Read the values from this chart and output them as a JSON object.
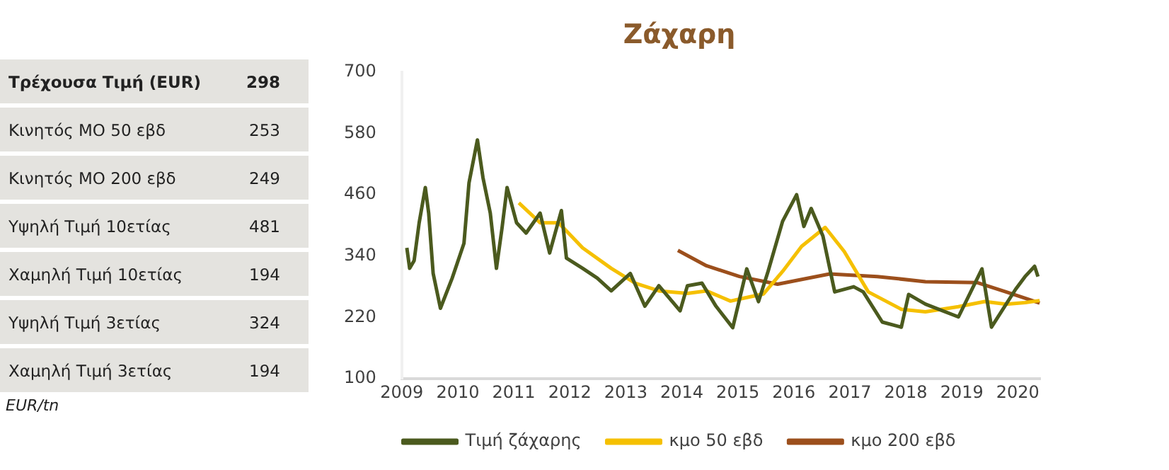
{
  "chart_data": [
    {
      "type": "other",
      "categories": [
        "Τρέχουσα Τιμή (EUR)",
        "Κινητός ΜΟ 50 εβδ",
        "Κινητός ΜΟ 200 εβδ",
        "Υψηλή Τιμή 10ετίας",
        "Χαμηλή Τιμή 10ετίας",
        "Υψηλή Τιμή 3ετίας",
        "Χαμηλή Τιμή 3ετίας"
      ],
      "values": [
        298,
        253,
        249,
        481,
        194,
        324,
        194
      ],
      "data_labels": true,
      "annotations": [
        "EUR/tn"
      ]
    },
    {
      "type": "line",
      "title": "Ζάχαρη",
      "xlim": [
        2009,
        2020.4
      ],
      "xticks": [
        2009,
        2010,
        2011,
        2012,
        2013,
        2014,
        2015,
        2016,
        2017,
        2018,
        2019,
        2020
      ],
      "ylim": [
        100,
        700
      ],
      "yticks": [
        100,
        220,
        340,
        460,
        580,
        700
      ],
      "grid": false,
      "legend": "bottom",
      "marker": "none",
      "line_style": "solid",
      "series": [
        {
          "name": "Τιμή ζάχαρης",
          "color": "#4b5a1e",
          "x": [
            2009.09,
            2009.14,
            2009.22,
            2009.31,
            2009.42,
            2009.48,
            2009.56,
            2009.69,
            2009.9,
            2010.11,
            2010.2,
            2010.35,
            2010.45,
            2010.58,
            2010.69,
            2010.79,
            2010.88,
            2011.05,
            2011.22,
            2011.47,
            2011.64,
            2011.85,
            2011.94,
            2012.23,
            2012.49,
            2012.74,
            2013.08,
            2013.34,
            2013.59,
            2013.97,
            2014.1,
            2014.36,
            2014.61,
            2014.91,
            2015.16,
            2015.37,
            2015.54,
            2015.8,
            2016.05,
            2016.18,
            2016.31,
            2016.52,
            2016.73,
            2017.07,
            2017.24,
            2017.58,
            2017.92,
            2018.05,
            2018.35,
            2018.94,
            2019.36,
            2019.53,
            2019.96,
            2020.13,
            2020.3,
            2020.36
          ],
          "values": [
            356,
            316,
            331,
            405,
            474,
            424,
            306,
            238,
            297,
            365,
            483,
            567,
            493,
            424,
            316,
            395,
            474,
            405,
            385,
            424,
            346,
            429,
            336,
            316,
            297,
            272,
            306,
            242,
            282,
            233,
            282,
            287,
            242,
            200,
            315,
            251,
            310,
            408,
            460,
            398,
            433,
            379,
            270,
            280,
            270,
            211,
            201,
            265,
            246,
            221,
            315,
            201,
            275,
            300,
            320,
            300
          ]
        },
        {
          "name": "κμο 50 εβδ",
          "color": "#f5c000",
          "x": [
            2011.09,
            2011.47,
            2011.8,
            2012.23,
            2012.74,
            2013.17,
            2013.59,
            2014.1,
            2014.44,
            2014.87,
            2015.03,
            2015.46,
            2015.8,
            2016.14,
            2016.56,
            2016.9,
            2017.33,
            2017.92,
            2018.35,
            2018.94,
            2019.41,
            2019.79,
            2020.13,
            2020.39
          ],
          "values": [
            444,
            405,
            405,
            356,
            316,
            287,
            272,
            267,
            272,
            252,
            256,
            266,
            310,
            359,
            396,
            349,
            270,
            236,
            231,
            241,
            251,
            246,
            249,
            253
          ]
        },
        {
          "name": "κμο 200 εβδ",
          "color": "#9c4f1c",
          "x": [
            2013.93,
            2014.44,
            2015.03,
            2015.71,
            2016.64,
            2017.49,
            2018.35,
            2019.28,
            2019.79,
            2020.39
          ],
          "values": [
            351,
            321,
            300,
            285,
            305,
            300,
            290,
            288,
            270,
            248
          ]
        }
      ]
    }
  ]
}
